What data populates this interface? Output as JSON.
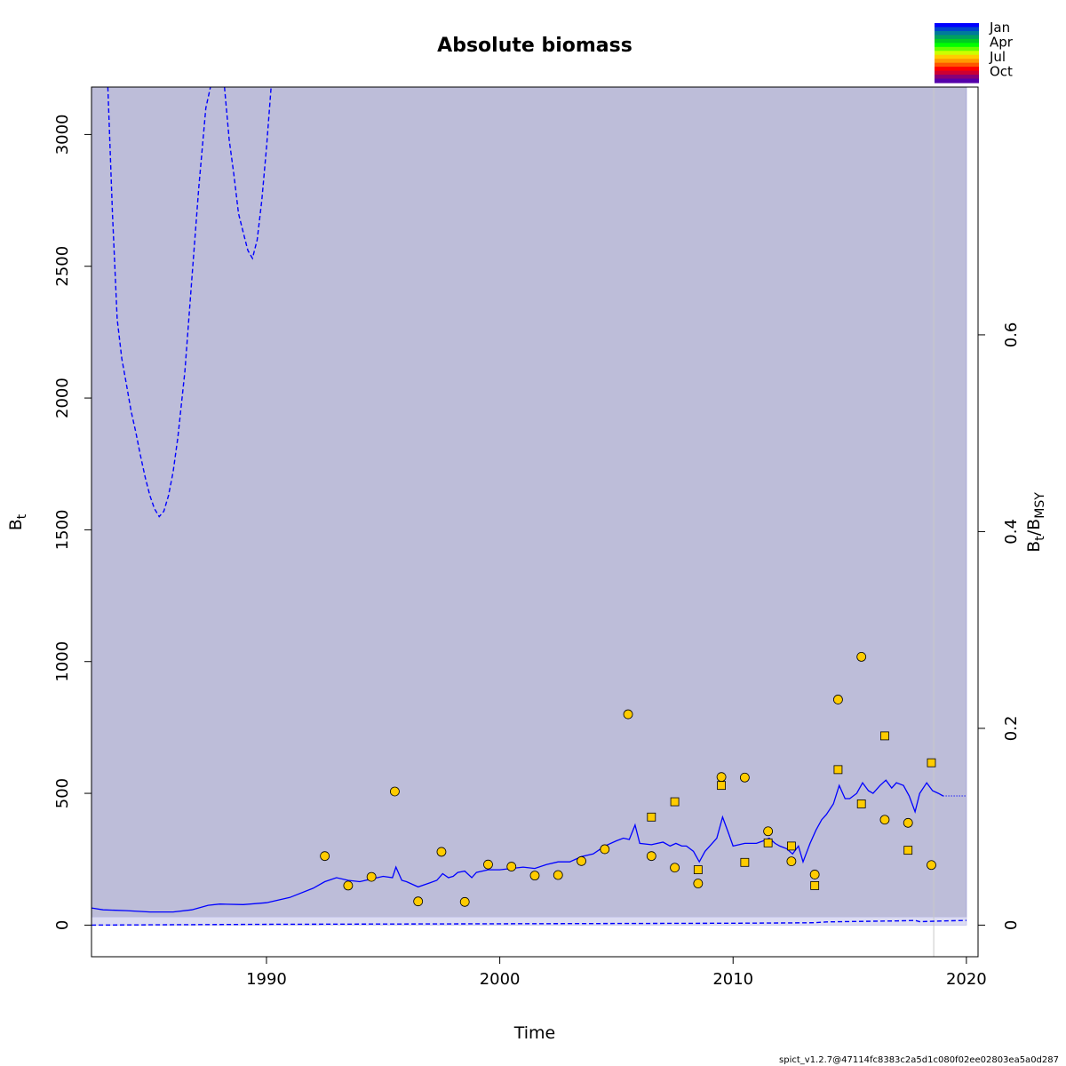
{
  "chart_data": {
    "type": "line",
    "title": "Absolute biomass",
    "xlabel": "Time",
    "ylabel_main": "B",
    "ylabel_sub": "t",
    "ylabel2_main": "B",
    "ylabel2_sub1": "t",
    "ylabel2_sep": "/",
    "ylabel2_main2": "B",
    "ylabel2_sub2": "MSY",
    "xlim": [
      1982.5,
      2020.5
    ],
    "ylim": [
      -120,
      3180
    ],
    "xticks": [
      1990,
      2000,
      2010,
      2020
    ],
    "xtick_labels": [
      "1990",
      "2000",
      "2010",
      "2020"
    ],
    "yticks": [
      0,
      500,
      1000,
      1500,
      2000,
      2500,
      3000
    ],
    "ytick_labels": [
      "0",
      "500",
      "1000",
      "1500",
      "2000",
      "2500",
      "3000"
    ],
    "y2_scale_per_unit": 3733,
    "y2ticks": [
      0,
      0.2,
      0.4,
      0.6
    ],
    "y2tick_labels": [
      "0",
      "0.2",
      "0.4",
      "0.6"
    ],
    "grid": false,
    "ci_band": {
      "x_start": 1982.0,
      "x_end": 2020.0,
      "lower": 30,
      "upper_clipped": 3180,
      "color": "#bdbdd9"
    },
    "lower_band": {
      "x_start": 1982.0,
      "x_end": 2020.0,
      "lower": 0,
      "upper": 30,
      "color": "#dcdcf2"
    },
    "vline_x": 2018.6,
    "estimate_line": {
      "color": "#0000ff",
      "x": [
        1982.0,
        1982.1,
        1982.2,
        1982.35,
        1982.5,
        1983,
        1984,
        1985,
        1986,
        1986.8,
        1987.5,
        1988,
        1989,
        1990,
        1991,
        1992,
        1992.5,
        1993,
        1993.5,
        1994,
        1994.5,
        1995,
        1995.4,
        1995.55,
        1995.8,
        1996,
        1996.5,
        1997,
        1997.3,
        1997.55,
        1997.8,
        1998,
        1998.2,
        1998.5,
        1998.8,
        1999,
        1999.5,
        2000,
        2000.5,
        2001,
        2001.5,
        2002,
        2002.5,
        2003,
        2003.5,
        2004,
        2004.5,
        2005,
        2005.3,
        2005.55,
        2005.8,
        2006,
        2006.5,
        2007,
        2007.3,
        2007.55,
        2007.8,
        2008,
        2008.3,
        2008.55,
        2008.8,
        2009,
        2009.3,
        2009.55,
        2009.8,
        2010,
        2010.5,
        2011,
        2011.3,
        2011.55,
        2011.8,
        2012,
        2012.3,
        2012.55,
        2012.8,
        2013,
        2013.3,
        2013.55,
        2013.8,
        2014,
        2014.3,
        2014.55,
        2014.8,
        2015,
        2015.3,
        2015.55,
        2015.8,
        2016,
        2016.3,
        2016.55,
        2016.8,
        2017,
        2017.3,
        2017.55,
        2017.8,
        2018,
        2018.3,
        2018.55,
        2018.8,
        2019
      ],
      "y": [
        770,
        300,
        130,
        80,
        65,
        58,
        55,
        50,
        50,
        58,
        75,
        80,
        78,
        85,
        105,
        140,
        165,
        180,
        170,
        165,
        175,
        185,
        180,
        220,
        170,
        165,
        145,
        160,
        170,
        195,
        180,
        185,
        200,
        205,
        180,
        200,
        210,
        210,
        215,
        220,
        215,
        230,
        240,
        240,
        260,
        270,
        300,
        320,
        330,
        325,
        380,
        310,
        305,
        315,
        300,
        310,
        300,
        300,
        280,
        240,
        280,
        300,
        330,
        410,
        350,
        300,
        310,
        310,
        320,
        330,
        310,
        300,
        290,
        270,
        300,
        240,
        310,
        360,
        400,
        420,
        460,
        530,
        480,
        480,
        500,
        540,
        510,
        500,
        530,
        550,
        520,
        540,
        530,
        490,
        430,
        500,
        540,
        510,
        500,
        490
      ]
    },
    "forecast_line": {
      "x": [
        2019,
        2019.5,
        2020
      ],
      "y": [
        490,
        490,
        490
      ],
      "color": "#0000ff",
      "style": "dotted"
    },
    "upper_ci_line": {
      "color": "#0000ff",
      "style": "dashed",
      "segments": [
        {
          "x": [
            1983.2,
            1983.4,
            1983.6,
            1983.8,
            1984,
            1984.2,
            1984.4,
            1984.6,
            1984.8,
            1985.0,
            1985.2,
            1985.4,
            1985.6,
            1985.8,
            1986.0,
            1986.2,
            1986.5,
            1986.8,
            1987.1,
            1987.4,
            1987.6
          ],
          "y": [
            3180,
            2700,
            2300,
            2150,
            2050,
            1950,
            1870,
            1780,
            1700,
            1630,
            1580,
            1550,
            1570,
            1630,
            1720,
            1850,
            2100,
            2450,
            2800,
            3100,
            3180
          ]
        },
        {
          "x": [
            1988.2,
            1988.4,
            1988.6,
            1988.8,
            1989.0,
            1989.2,
            1989.4,
            1989.6,
            1989.8,
            1990.0,
            1990.2
          ],
          "y": [
            3180,
            2980,
            2850,
            2700,
            2630,
            2560,
            2530,
            2600,
            2750,
            2950,
            3180
          ]
        }
      ]
    },
    "lower_ci_line": {
      "color": "#0000ff",
      "style": "dashed",
      "x": [
        1982.0,
        1982.15,
        1982.4,
        1985,
        1990,
        1995,
        2000,
        2005,
        2010,
        2012,
        2013.5,
        2014,
        2016,
        2017,
        2017.8,
        2018,
        2019,
        2020
      ],
      "y": [
        115,
        20,
        0,
        1,
        3,
        4,
        5,
        6,
        7,
        8,
        9,
        12,
        15,
        16,
        18,
        13,
        16,
        18
      ]
    },
    "index_points_circle": {
      "x": [
        1992.5,
        1993.5,
        1994.5,
        1995.5,
        1996.5,
        1997.5,
        1998.5,
        1999.5,
        2000.5,
        2001.5,
        2002.5,
        2003.5,
        2004.5,
        2005.5,
        2006.5,
        2007.5,
        2008.5,
        2009.5,
        2010.5,
        2011.5,
        2012.5,
        2013.5,
        2014.5,
        2015.5,
        2016.5,
        2017.5,
        2018.5
      ],
      "y": [
        262,
        150,
        183,
        507,
        90,
        278,
        88,
        230,
        222,
        188,
        190,
        243,
        288,
        800,
        262,
        218,
        158,
        562,
        560,
        356,
        242,
        192,
        856,
        1018,
        400,
        388,
        228
      ],
      "fill": "#ffcc00"
    },
    "index_points_square": {
      "x": [
        2006.5,
        2007.5,
        2008.5,
        2009.5,
        2010.5,
        2011.5,
        2012.5,
        2013.5,
        2014.5,
        2015.5,
        2016.5,
        2017.5,
        2018.5
      ],
      "y": [
        410,
        468,
        210,
        530,
        238,
        312,
        300,
        150,
        590,
        460,
        718,
        284,
        616
      ],
      "fill": "#ffcc00"
    },
    "legend": {
      "placement": "top-right",
      "labels": [
        "Jan",
        "Apr",
        "Jul",
        "Oct"
      ],
      "colors": [
        "#0000ff",
        "#0044cc",
        "#007a9a",
        "#00a060",
        "#00cc22",
        "#00ff00",
        "#66ff00",
        "#ccff00",
        "#ffcc00",
        "#ff9900",
        "#ff5500",
        "#ff0000",
        "#cc0033",
        "#880077",
        "#5500aa"
      ]
    }
  },
  "footer": "spict_v1.2.7@47114fc8383c2a5d1c080f02ee02803ea5a0d287"
}
